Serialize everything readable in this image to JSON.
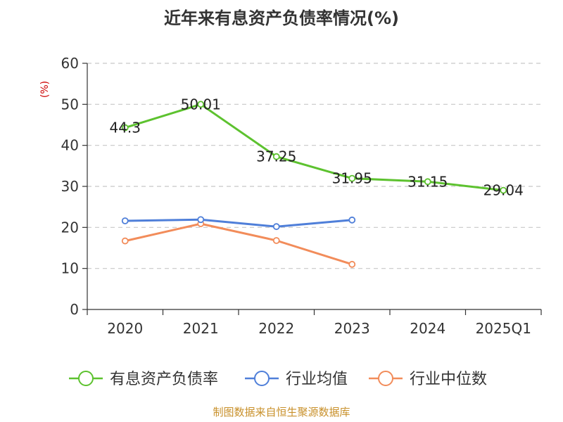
{
  "chart_data": {
    "type": "line",
    "title": "近年来有息资产负债率情况(%)",
    "ylabel": "(%)",
    "xlabel": "",
    "categories": [
      "2020",
      "2021",
      "2022",
      "2023",
      "2024",
      "2025Q1"
    ],
    "ylim": [
      0,
      60
    ],
    "yticks": [
      0,
      10,
      20,
      30,
      40,
      50,
      60
    ],
    "grid": true,
    "legend_position": "bottom",
    "series": [
      {
        "name": "有息资产负债率",
        "color": "#5dc22f",
        "values": [
          44.3,
          50.01,
          37.25,
          31.95,
          31.15,
          29.04
        ],
        "labels": [
          "44.3",
          "50.01",
          "37.25",
          "31.95",
          "31.15",
          "29.04"
        ]
      },
      {
        "name": "行业均值",
        "color": "#4f7fd9",
        "values": [
          21.6,
          21.9,
          20.2,
          21.8,
          null,
          null
        ]
      },
      {
        "name": "行业中位数",
        "color": "#f28c5a",
        "values": [
          16.7,
          20.9,
          16.8,
          11.0,
          null,
          null
        ]
      }
    ],
    "source": "制图数据来自恒生聚源数据库"
  }
}
